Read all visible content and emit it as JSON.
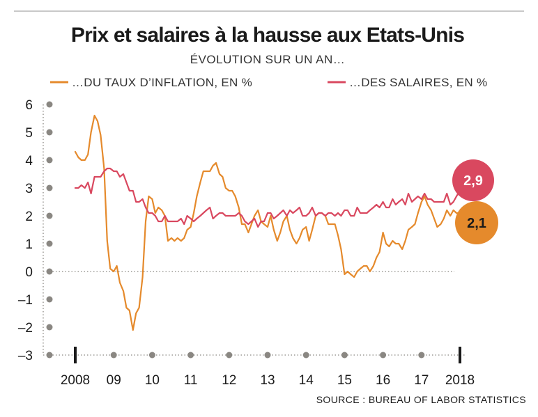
{
  "chart_data": {
    "type": "line",
    "title": "Prix et salaires à la hausse aux Etats-Unis",
    "subtitle": "ÉVOLUTION SUR UN AN…",
    "source": "SOURCE : BUREAU OF LABOR STATISTICS",
    "ylim": [
      -3,
      6
    ],
    "y_ticks": [
      "6",
      "5",
      "4",
      "3",
      "2",
      "1",
      "0",
      "–1",
      "–2",
      "–3"
    ],
    "y_tick_values": [
      6,
      5,
      4,
      3,
      2,
      1,
      0,
      -1,
      -2,
      -3
    ],
    "x_range": [
      2007.9,
      2018.02
    ],
    "x_ticks": [
      {
        "label": "2008",
        "value": 2008.0
      },
      {
        "label": "09",
        "value": 2009.0
      },
      {
        "label": "10",
        "value": 2010.0
      },
      {
        "label": "11",
        "value": 2011.0
      },
      {
        "label": "12",
        "value": 2012.0
      },
      {
        "label": "13",
        "value": 2013.0
      },
      {
        "label": "14",
        "value": 2014.0
      },
      {
        "label": "15",
        "value": 2015.0
      },
      {
        "label": "16",
        "value": 2016.0
      },
      {
        "label": "17",
        "value": 2017.0
      },
      {
        "label": "2018",
        "value": 2018.0
      }
    ],
    "grid": false,
    "legend_placement": "top",
    "series": [
      {
        "name": "…DU TAUX D’INFLATION, EN %",
        "color": "#e58a2c",
        "end_label": "2,1",
        "points": [
          [
            2008.0,
            4.3
          ],
          [
            2008.08,
            4.1
          ],
          [
            2008.16,
            4.0
          ],
          [
            2008.25,
            4.0
          ],
          [
            2008.33,
            4.2
          ],
          [
            2008.41,
            5.0
          ],
          [
            2008.5,
            5.6
          ],
          [
            2008.58,
            5.4
          ],
          [
            2008.66,
            4.9
          ],
          [
            2008.75,
            3.7
          ],
          [
            2008.83,
            1.1
          ],
          [
            2008.91,
            0.1
          ],
          [
            2009.0,
            0.0
          ],
          [
            2009.08,
            0.2
          ],
          [
            2009.16,
            -0.4
          ],
          [
            2009.25,
            -0.7
          ],
          [
            2009.33,
            -1.3
          ],
          [
            2009.41,
            -1.4
          ],
          [
            2009.5,
            -2.1
          ],
          [
            2009.58,
            -1.5
          ],
          [
            2009.66,
            -1.3
          ],
          [
            2009.75,
            -0.2
          ],
          [
            2009.83,
            1.8
          ],
          [
            2009.91,
            2.7
          ],
          [
            2010.0,
            2.6
          ],
          [
            2010.08,
            2.1
          ],
          [
            2010.16,
            2.3
          ],
          [
            2010.25,
            2.2
          ],
          [
            2010.33,
            2.0
          ],
          [
            2010.41,
            1.1
          ],
          [
            2010.5,
            1.2
          ],
          [
            2010.58,
            1.1
          ],
          [
            2010.66,
            1.2
          ],
          [
            2010.75,
            1.1
          ],
          [
            2010.83,
            1.2
          ],
          [
            2010.91,
            1.5
          ],
          [
            2011.0,
            1.6
          ],
          [
            2011.08,
            2.1
          ],
          [
            2011.16,
            2.7
          ],
          [
            2011.25,
            3.2
          ],
          [
            2011.33,
            3.6
          ],
          [
            2011.41,
            3.6
          ],
          [
            2011.5,
            3.6
          ],
          [
            2011.58,
            3.8
          ],
          [
            2011.66,
            3.9
          ],
          [
            2011.75,
            3.5
          ],
          [
            2011.83,
            3.4
          ],
          [
            2011.91,
            3.0
          ],
          [
            2012.0,
            2.9
          ],
          [
            2012.08,
            2.9
          ],
          [
            2012.16,
            2.7
          ],
          [
            2012.25,
            2.3
          ],
          [
            2012.33,
            1.7
          ],
          [
            2012.41,
            1.7
          ],
          [
            2012.5,
            1.4
          ],
          [
            2012.58,
            1.7
          ],
          [
            2012.66,
            2.0
          ],
          [
            2012.75,
            2.2
          ],
          [
            2012.83,
            1.8
          ],
          [
            2012.91,
            1.7
          ],
          [
            2013.0,
            1.6
          ],
          [
            2013.08,
            2.0
          ],
          [
            2013.16,
            1.5
          ],
          [
            2013.25,
            1.1
          ],
          [
            2013.33,
            1.4
          ],
          [
            2013.41,
            1.8
          ],
          [
            2013.5,
            2.0
          ],
          [
            2013.58,
            1.5
          ],
          [
            2013.66,
            1.2
          ],
          [
            2013.75,
            1.0
          ],
          [
            2013.83,
            1.2
          ],
          [
            2013.91,
            1.5
          ],
          [
            2014.0,
            1.6
          ],
          [
            2014.08,
            1.1
          ],
          [
            2014.16,
            1.5
          ],
          [
            2014.25,
            2.0
          ],
          [
            2014.33,
            2.1
          ],
          [
            2014.41,
            2.1
          ],
          [
            2014.5,
            2.0
          ],
          [
            2014.58,
            1.7
          ],
          [
            2014.66,
            1.7
          ],
          [
            2014.75,
            1.7
          ],
          [
            2014.83,
            1.3
          ],
          [
            2014.91,
            0.8
          ],
          [
            2015.0,
            -0.1
          ],
          [
            2015.08,
            0.0
          ],
          [
            2015.16,
            -0.1
          ],
          [
            2015.25,
            -0.2
          ],
          [
            2015.33,
            0.0
          ],
          [
            2015.41,
            0.1
          ],
          [
            2015.5,
            0.2
          ],
          [
            2015.58,
            0.2
          ],
          [
            2015.66,
            0.0
          ],
          [
            2015.75,
            0.2
          ],
          [
            2015.83,
            0.5
          ],
          [
            2015.91,
            0.7
          ],
          [
            2016.0,
            1.4
          ],
          [
            2016.08,
            1.0
          ],
          [
            2016.16,
            0.9
          ],
          [
            2016.25,
            1.1
          ],
          [
            2016.33,
            1.0
          ],
          [
            2016.41,
            1.0
          ],
          [
            2016.5,
            0.8
          ],
          [
            2016.58,
            1.1
          ],
          [
            2016.66,
            1.5
          ],
          [
            2016.75,
            1.6
          ],
          [
            2016.83,
            1.7
          ],
          [
            2016.91,
            2.1
          ],
          [
            2017.0,
            2.5
          ],
          [
            2017.08,
            2.7
          ],
          [
            2017.16,
            2.4
          ],
          [
            2017.25,
            2.2
          ],
          [
            2017.33,
            1.9
          ],
          [
            2017.41,
            1.6
          ],
          [
            2017.5,
            1.7
          ],
          [
            2017.58,
            1.9
          ],
          [
            2017.66,
            2.2
          ],
          [
            2017.75,
            2.0
          ],
          [
            2017.83,
            2.2
          ],
          [
            2017.91,
            2.1
          ],
          [
            2018.0,
            2.1
          ]
        ]
      },
      {
        "name": "…DES SALAIRES, EN %",
        "color": "#d9485f",
        "end_label": "2,9",
        "points": [
          [
            2008.0,
            3.0
          ],
          [
            2008.08,
            3.0
          ],
          [
            2008.16,
            3.1
          ],
          [
            2008.25,
            3.0
          ],
          [
            2008.33,
            3.2
          ],
          [
            2008.41,
            2.8
          ],
          [
            2008.5,
            3.4
          ],
          [
            2008.58,
            3.4
          ],
          [
            2008.66,
            3.4
          ],
          [
            2008.75,
            3.6
          ],
          [
            2008.83,
            3.7
          ],
          [
            2008.91,
            3.7
          ],
          [
            2009.0,
            3.6
          ],
          [
            2009.08,
            3.6
          ],
          [
            2009.16,
            3.4
          ],
          [
            2009.25,
            3.5
          ],
          [
            2009.33,
            3.2
          ],
          [
            2009.41,
            2.9
          ],
          [
            2009.5,
            2.9
          ],
          [
            2009.58,
            2.5
          ],
          [
            2009.66,
            2.5
          ],
          [
            2009.75,
            2.6
          ],
          [
            2009.83,
            2.3
          ],
          [
            2009.91,
            2.1
          ],
          [
            2010.0,
            2.1
          ],
          [
            2010.08,
            2.0
          ],
          [
            2010.16,
            1.8
          ],
          [
            2010.25,
            1.8
          ],
          [
            2010.33,
            2.0
          ],
          [
            2010.41,
            1.8
          ],
          [
            2010.5,
            1.8
          ],
          [
            2010.58,
            1.8
          ],
          [
            2010.66,
            1.8
          ],
          [
            2010.75,
            1.9
          ],
          [
            2010.83,
            1.7
          ],
          [
            2010.91,
            2.0
          ],
          [
            2011.0,
            1.9
          ],
          [
            2011.08,
            1.8
          ],
          [
            2011.16,
            1.9
          ],
          [
            2011.25,
            2.0
          ],
          [
            2011.33,
            2.1
          ],
          [
            2011.41,
            2.2
          ],
          [
            2011.5,
            2.3
          ],
          [
            2011.58,
            1.9
          ],
          [
            2011.66,
            2.0
          ],
          [
            2011.75,
            2.1
          ],
          [
            2011.83,
            2.1
          ],
          [
            2011.91,
            2.0
          ],
          [
            2012.0,
            2.0
          ],
          [
            2012.08,
            2.0
          ],
          [
            2012.16,
            2.0
          ],
          [
            2012.25,
            2.1
          ],
          [
            2012.33,
            2.0
          ],
          [
            2012.41,
            1.8
          ],
          [
            2012.5,
            1.7
          ],
          [
            2012.58,
            1.8
          ],
          [
            2012.66,
            1.9
          ],
          [
            2012.75,
            1.6
          ],
          [
            2012.83,
            1.8
          ],
          [
            2012.91,
            1.8
          ],
          [
            2013.0,
            2.1
          ],
          [
            2013.08,
            2.1
          ],
          [
            2013.16,
            1.9
          ],
          [
            2013.25,
            2.0
          ],
          [
            2013.33,
            2.1
          ],
          [
            2013.41,
            2.2
          ],
          [
            2013.5,
            2.0
          ],
          [
            2013.58,
            2.2
          ],
          [
            2013.66,
            2.1
          ],
          [
            2013.75,
            2.2
          ],
          [
            2013.83,
            2.3
          ],
          [
            2013.91,
            2.0
          ],
          [
            2014.0,
            2.0
          ],
          [
            2014.08,
            2.1
          ],
          [
            2014.16,
            2.3
          ],
          [
            2014.25,
            2.0
          ],
          [
            2014.33,
            2.1
          ],
          [
            2014.41,
            2.1
          ],
          [
            2014.5,
            2.0
          ],
          [
            2014.58,
            2.1
          ],
          [
            2014.66,
            2.1
          ],
          [
            2014.75,
            2.0
          ],
          [
            2014.83,
            2.1
          ],
          [
            2014.91,
            2.0
          ],
          [
            2015.0,
            2.2
          ],
          [
            2015.08,
            2.2
          ],
          [
            2015.16,
            2.0
          ],
          [
            2015.25,
            2.0
          ],
          [
            2015.33,
            2.3
          ],
          [
            2015.41,
            2.1
          ],
          [
            2015.5,
            2.1
          ],
          [
            2015.58,
            2.1
          ],
          [
            2015.66,
            2.2
          ],
          [
            2015.75,
            2.3
          ],
          [
            2015.83,
            2.4
          ],
          [
            2015.91,
            2.3
          ],
          [
            2016.0,
            2.5
          ],
          [
            2016.08,
            2.3
          ],
          [
            2016.16,
            2.3
          ],
          [
            2016.25,
            2.6
          ],
          [
            2016.33,
            2.4
          ],
          [
            2016.41,
            2.5
          ],
          [
            2016.5,
            2.6
          ],
          [
            2016.58,
            2.4
          ],
          [
            2016.66,
            2.8
          ],
          [
            2016.75,
            2.5
          ],
          [
            2016.83,
            2.6
          ],
          [
            2016.91,
            2.7
          ],
          [
            2017.0,
            2.6
          ],
          [
            2017.08,
            2.8
          ],
          [
            2017.16,
            2.6
          ],
          [
            2017.25,
            2.6
          ],
          [
            2017.33,
            2.5
          ],
          [
            2017.41,
            2.5
          ],
          [
            2017.5,
            2.5
          ],
          [
            2017.58,
            2.5
          ],
          [
            2017.66,
            2.8
          ],
          [
            2017.75,
            2.4
          ],
          [
            2017.83,
            2.5
          ],
          [
            2017.91,
            2.7
          ],
          [
            2018.0,
            2.9
          ]
        ]
      }
    ]
  }
}
